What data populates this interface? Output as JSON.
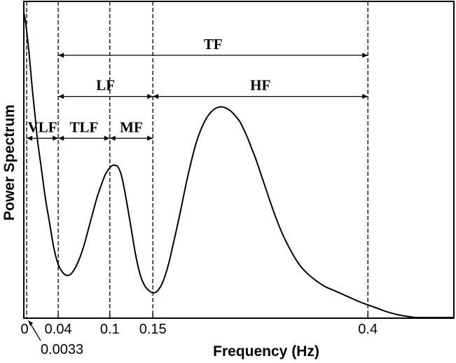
{
  "chart_data": {
    "type": "line",
    "title": "",
    "xlabel": "Frequency (Hz)",
    "ylabel": "Power Spectrum",
    "xlim": [
      0,
      0.5
    ],
    "ylim": [
      0,
      1
    ],
    "grid": false,
    "x_ticks": [
      {
        "value": 0,
        "label": "0"
      },
      {
        "value": 0.04,
        "label": "0.04"
      },
      {
        "value": 0.1,
        "label": "0.1"
      },
      {
        "value": 0.15,
        "label": "0.15"
      },
      {
        "value": 0.4,
        "label": "0.4"
      }
    ],
    "annotation": {
      "value": 0.0033,
      "label": "0.0033"
    },
    "boundaries": [
      0.0033,
      0.04,
      0.1,
      0.15,
      0.4
    ],
    "bands": [
      {
        "label": "TF",
        "from": 0.04,
        "to": 0.4,
        "level": 0.83
      },
      {
        "label": "LF",
        "from": 0.04,
        "to": 0.15,
        "level": 0.7
      },
      {
        "label": "HF",
        "from": 0.15,
        "to": 0.4,
        "level": 0.7
      },
      {
        "label": "VLF",
        "from": 0.0033,
        "to": 0.04,
        "level": 0.568
      },
      {
        "label": "TLF",
        "from": 0.04,
        "to": 0.1,
        "level": 0.568
      },
      {
        "label": "MF",
        "from": 0.1,
        "to": 0.15,
        "level": 0.568
      }
    ],
    "series": [
      {
        "x": [
          0.0,
          0.002,
          0.004,
          0.006,
          0.008,
          0.01,
          0.013,
          0.016,
          0.02,
          0.025,
          0.03,
          0.035,
          0.04,
          0.045,
          0.05,
          0.055,
          0.06,
          0.065,
          0.07,
          0.075,
          0.08,
          0.085,
          0.09,
          0.095,
          0.1,
          0.103,
          0.106,
          0.108,
          0.11,
          0.113,
          0.116,
          0.12,
          0.125,
          0.13,
          0.135,
          0.14,
          0.145,
          0.15,
          0.155,
          0.16,
          0.165,
          0.17,
          0.18,
          0.19,
          0.2,
          0.21,
          0.22,
          0.23,
          0.24,
          0.25,
          0.255,
          0.26,
          0.265,
          0.27,
          0.28,
          0.29,
          0.3,
          0.31,
          0.32,
          0.33,
          0.34,
          0.35,
          0.36,
          0.37,
          0.38,
          0.39,
          0.4,
          0.41,
          0.42,
          0.43,
          0.44,
          0.45,
          0.455,
          0.46,
          0.47,
          0.48,
          0.49,
          0.5
        ],
        "y": [
          0.965,
          0.935,
          0.89,
          0.84,
          0.78,
          0.72,
          0.64,
          0.56,
          0.48,
          0.38,
          0.3,
          0.22,
          0.17,
          0.145,
          0.135,
          0.14,
          0.16,
          0.19,
          0.23,
          0.28,
          0.33,
          0.38,
          0.42,
          0.455,
          0.475,
          0.482,
          0.483,
          0.481,
          0.475,
          0.455,
          0.42,
          0.36,
          0.28,
          0.2,
          0.14,
          0.105,
          0.088,
          0.08,
          0.085,
          0.105,
          0.14,
          0.19,
          0.31,
          0.44,
          0.55,
          0.62,
          0.657,
          0.667,
          0.655,
          0.625,
          0.6,
          0.57,
          0.535,
          0.5,
          0.42,
          0.34,
          0.27,
          0.215,
          0.17,
          0.14,
          0.118,
          0.1,
          0.088,
          0.076,
          0.064,
          0.052,
          0.042,
          0.032,
          0.022,
          0.014,
          0.008,
          0.004,
          0.002,
          0.002,
          0.002,
          0.002,
          0.002,
          0.002
        ]
      }
    ]
  }
}
